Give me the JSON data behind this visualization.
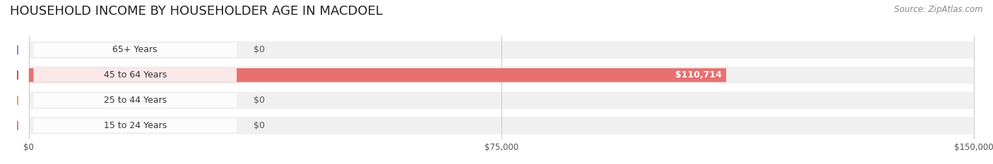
{
  "title": "HOUSEHOLD INCOME BY HOUSEHOLDER AGE IN MACDOEL",
  "source": "Source: ZipAtlas.com",
  "categories": [
    "15 to 24 Years",
    "25 to 44 Years",
    "45 to 64 Years",
    "65+ Years"
  ],
  "values": [
    0,
    0,
    110714,
    0
  ],
  "bar_colors": [
    "#f4a0b0",
    "#f5c98a",
    "#e87070",
    "#aac4e0"
  ],
  "dot_colors": [
    "#e87090",
    "#e8a050",
    "#d94040",
    "#7090c8"
  ],
  "bg_row_colors": [
    "#f0f0f0",
    "#f0f0f0",
    "#f0f0f0",
    "#f0f0f0"
  ],
  "xlim": [
    0,
    150000
  ],
  "xticks": [
    0,
    75000,
    150000
  ],
  "xticklabels": [
    "$0",
    "$75,000",
    "$150,000"
  ],
  "value_labels": [
    "$0",
    "$0",
    "$110,714",
    "$0"
  ],
  "bar_height": 0.55,
  "figsize": [
    14.06,
    2.33
  ],
  "dpi": 100,
  "background_color": "#ffffff",
  "label_fontsize": 9,
  "title_fontsize": 13,
  "source_fontsize": 8.5,
  "tick_fontsize": 8.5
}
